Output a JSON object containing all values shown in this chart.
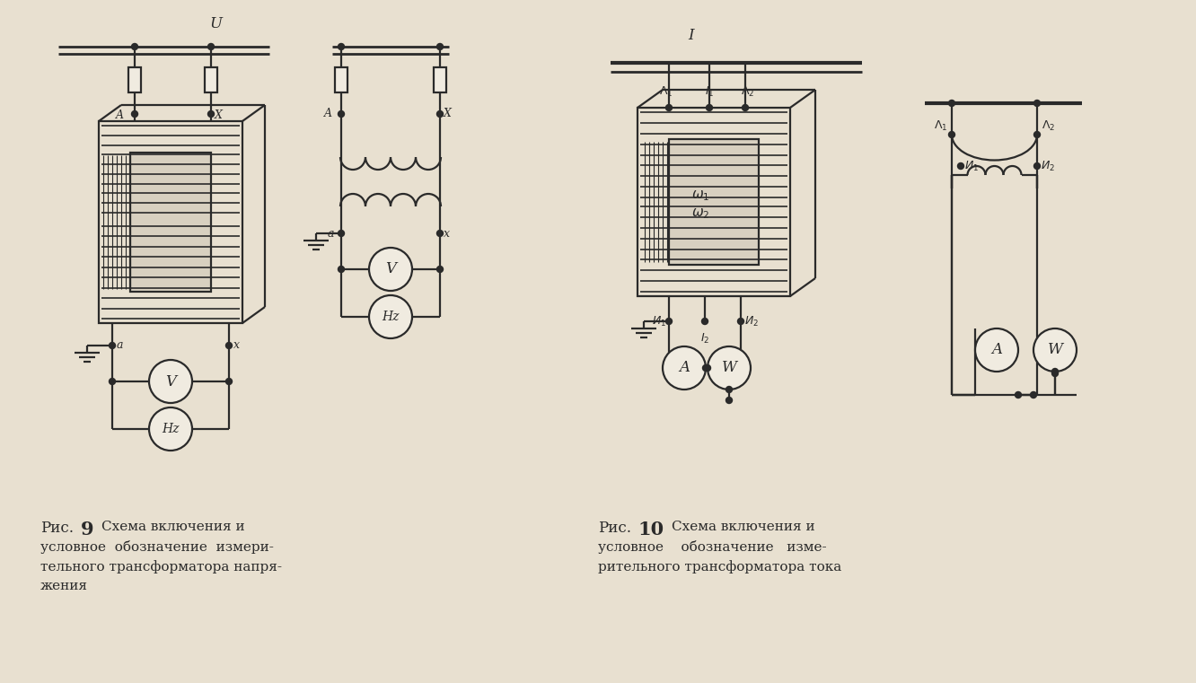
{
  "bg_color": "#e8e0d0",
  "line_color": "#2a2a2a",
  "caption_9_lines": [
    "Рис.",
    "9",
    "Схема включения и",
    "условное  обозначение  измери-",
    "тельного трансформатора напря-",
    "жения"
  ],
  "caption_10_lines": [
    "Рис.",
    "10",
    "Схема включения и",
    "условное    обозначение   изме-",
    "рительного трансформатора тока"
  ]
}
